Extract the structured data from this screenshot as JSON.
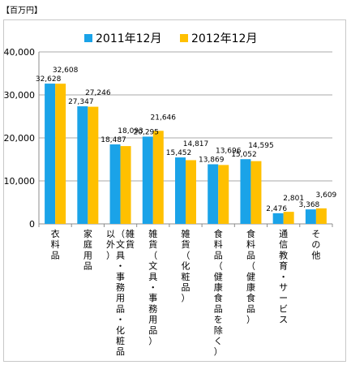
{
  "unit_label": "【百万円】",
  "chart_data": {
    "type": "bar",
    "categories": [
      "衣料品",
      "家庭用品",
      "雑貨（文具・事務用品・化粧品以外）",
      "雑貨（文具・事務用品）",
      "雑貨（化粧品）",
      "食料品（健康食品を除く）",
      "食料品（健康食品）",
      "通信教育・サービス",
      "その他"
    ],
    "category_columns": [
      [
        "衣料品"
      ],
      [
        "家庭用品"
      ],
      [
        "雑貨",
        "（文具・事務用品・化粧品",
        "以外）"
      ],
      [
        "雑貨（文具・事務用品）"
      ],
      [
        "雑貨（化粧品）"
      ],
      [
        "食料品（健康食品を除く）"
      ],
      [
        "食料品（健康食品）"
      ],
      [
        "通信教育・サービス"
      ],
      [
        "その他"
      ]
    ],
    "series": [
      {
        "name": "2011年12月",
        "color": "#1aa3e8",
        "values": [
          32628,
          27347,
          18487,
          20295,
          15452,
          13869,
          15052,
          2476,
          3368
        ],
        "labels": [
          "32,628",
          "27,347",
          "18,487",
          "20,295",
          "15,452",
          "13,869",
          "15,052",
          "2,476",
          "3,368"
        ]
      },
      {
        "name": "2012年12月",
        "color": "#ffc000",
        "values": [
          32608,
          27246,
          18093,
          21646,
          14817,
          13696,
          14595,
          2801,
          3609
        ],
        "labels": [
          "32,608",
          "27,246",
          "18,093",
          "21,646",
          "14,817",
          "13,696",
          "14,595",
          "2,801",
          "3,609"
        ]
      }
    ],
    "ylim": [
      0,
      40000
    ],
    "yticks": [
      0,
      10000,
      20000,
      30000,
      40000
    ],
    "ytick_labels": [
      "0",
      "10,000",
      "20,000",
      "30,000",
      "40,000"
    ],
    "grid": true,
    "legend": "top"
  }
}
